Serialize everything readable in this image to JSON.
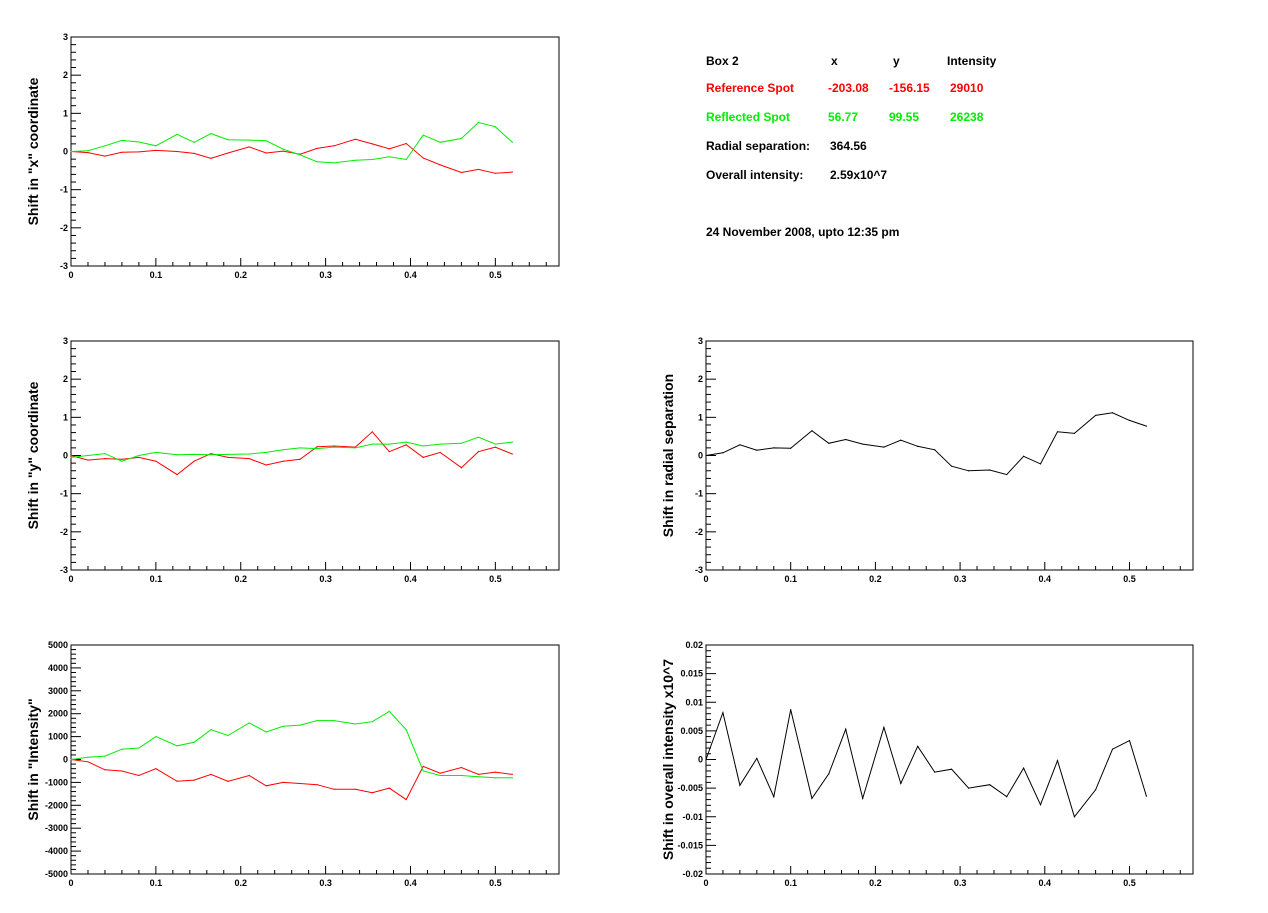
{
  "info": {
    "box_label": "Box 2",
    "col_x": "x",
    "col_y": "y",
    "col_intensity": "Intensity",
    "reference": {
      "label": "Reference Spot",
      "x": "-203.08",
      "y": "-156.15",
      "intensity": "29010"
    },
    "reflected": {
      "label": "Reflected Spot",
      "x": "56.77",
      "y": "99.55",
      "intensity": "26238"
    },
    "radial_label": "Radial separation:",
    "radial_value": "364.56",
    "overall_label": "Overall intensity:",
    "overall_value": "2.59x10^7",
    "date": "24 November 2008, upto 12:35 pm"
  },
  "colors": {
    "reference": "#ff0000",
    "reflected": "#00ee00",
    "single": "#000000"
  },
  "chart_data": [
    {
      "id": "x-shift",
      "type": "line",
      "ylabel": "Shift in \"x\" coordinate",
      "xlim": [
        0,
        0.575
      ],
      "ylim": [
        -3,
        3
      ],
      "xticks": [
        "0",
        "0.1",
        "0.2",
        "0.3",
        "0.4",
        "0.5"
      ],
      "yticks": [
        "-3",
        "-2",
        "-1",
        "0",
        "1",
        "2",
        "3"
      ],
      "x": [
        0,
        0.02,
        0.04,
        0.06,
        0.08,
        0.1,
        0.125,
        0.145,
        0.165,
        0.185,
        0.21,
        0.23,
        0.25,
        0.27,
        0.29,
        0.31,
        0.335,
        0.355,
        0.375,
        0.395,
        0.415,
        0.435,
        0.46,
        0.48,
        0.5,
        0.52
      ],
      "series": [
        {
          "name": "Reference Spot",
          "color": "reference",
          "values": [
            0,
            -0.03,
            -0.12,
            -0.02,
            -0.01,
            0.03,
            0,
            -0.05,
            -0.18,
            -0.04,
            0.12,
            -0.04,
            0.01,
            -0.07,
            0.08,
            0.15,
            0.32,
            0.2,
            0.07,
            0.21,
            -0.17,
            -0.35,
            -0.55,
            -0.47,
            -0.57,
            -0.54
          ]
        },
        {
          "name": "Reflected Spot",
          "color": "reflected",
          "values": [
            0,
            0.02,
            0.15,
            0.29,
            0.25,
            0.15,
            0.45,
            0.24,
            0.47,
            0.31,
            0.3,
            0.28,
            0.06,
            -0.09,
            -0.27,
            -0.3,
            -0.23,
            -0.21,
            -0.14,
            -0.21,
            0.43,
            0.24,
            0.34,
            0.76,
            0.65,
            0.24
          ]
        }
      ]
    },
    {
      "id": "y-shift",
      "type": "line",
      "ylabel": "Shift in \"y\" coordinate",
      "xlim": [
        0,
        0.575
      ],
      "ylim": [
        -3,
        3
      ],
      "xticks": [
        "0",
        "0.1",
        "0.2",
        "0.3",
        "0.4",
        "0.5"
      ],
      "yticks": [
        "-3",
        "-2",
        "-1",
        "0",
        "1",
        "2",
        "3"
      ],
      "x": [
        0,
        0.02,
        0.04,
        0.06,
        0.08,
        0.1,
        0.125,
        0.145,
        0.165,
        0.185,
        0.21,
        0.23,
        0.25,
        0.27,
        0.29,
        0.31,
        0.335,
        0.355,
        0.375,
        0.395,
        0.415,
        0.435,
        0.46,
        0.48,
        0.5,
        0.52
      ],
      "series": [
        {
          "name": "Reference Spot",
          "color": "reference",
          "values": [
            0,
            -0.12,
            -0.08,
            -0.1,
            -0.05,
            -0.15,
            -0.5,
            -0.15,
            0.05,
            -0.05,
            -0.08,
            -0.25,
            -0.15,
            -0.1,
            0.23,
            0.25,
            0.22,
            0.62,
            0.1,
            0.28,
            -0.05,
            0.08,
            -0.32,
            0.1,
            0.22,
            0.04
          ]
        },
        {
          "name": "Reflected Spot",
          "color": "reflected",
          "values": [
            -0.05,
            0,
            0.05,
            -0.15,
            0,
            0.08,
            0.02,
            0.03,
            0.02,
            0.03,
            0.04,
            0.08,
            0.15,
            0.2,
            0.18,
            0.22,
            0.2,
            0.3,
            0.3,
            0.35,
            0.25,
            0.3,
            0.32,
            0.48,
            0.3,
            0.35
          ]
        }
      ]
    },
    {
      "id": "intensity-shift",
      "type": "line",
      "ylabel": "Shift in \"Intensity\"",
      "xlim": [
        0,
        0.575
      ],
      "ylim": [
        -5000,
        5000
      ],
      "xticks": [
        "0",
        "0.1",
        "0.2",
        "0.3",
        "0.4",
        "0.5"
      ],
      "yticks": [
        "-5000",
        "-4000",
        "-3000",
        "-2000",
        "-1000",
        "0",
        "1000",
        "2000",
        "3000",
        "4000",
        "5000"
      ],
      "x": [
        0,
        0.02,
        0.04,
        0.06,
        0.08,
        0.1,
        0.125,
        0.145,
        0.165,
        0.185,
        0.21,
        0.23,
        0.25,
        0.27,
        0.29,
        0.31,
        0.335,
        0.355,
        0.375,
        0.395,
        0.415,
        0.435,
        0.46,
        0.48,
        0.5,
        0.52
      ],
      "series": [
        {
          "name": "Reference Spot",
          "color": "reference",
          "values": [
            0,
            -100,
            -450,
            -500,
            -700,
            -400,
            -950,
            -900,
            -650,
            -950,
            -700,
            -1150,
            -1000,
            -1050,
            -1100,
            -1300,
            -1300,
            -1450,
            -1250,
            -1750,
            -300,
            -600,
            -350,
            -650,
            -550,
            -650
          ]
        },
        {
          "name": "Reflected Spot",
          "color": "reflected",
          "values": [
            0,
            100,
            150,
            450,
            500,
            1000,
            600,
            750,
            1300,
            1050,
            1600,
            1200,
            1450,
            1500,
            1700,
            1700,
            1550,
            1650,
            2100,
            1300,
            -500,
            -700,
            -700,
            -750,
            -800,
            -800
          ]
        }
      ]
    },
    {
      "id": "radial-shift",
      "type": "line",
      "ylabel": "Shift in radial separation",
      "xlim": [
        0,
        0.575
      ],
      "ylim": [
        -3,
        3
      ],
      "xticks": [
        "0",
        "0.1",
        "0.2",
        "0.3",
        "0.4",
        "0.5"
      ],
      "yticks": [
        "-3",
        "-2",
        "-1",
        "0",
        "1",
        "2",
        "3"
      ],
      "x": [
        0,
        0.02,
        0.04,
        0.06,
        0.08,
        0.1,
        0.125,
        0.145,
        0.165,
        0.185,
        0.21,
        0.23,
        0.25,
        0.27,
        0.29,
        0.31,
        0.335,
        0.355,
        0.375,
        0.395,
        0.415,
        0.435,
        0.46,
        0.48,
        0.5,
        0.52
      ],
      "series": [
        {
          "color": "single",
          "values": [
            0,
            0.07,
            0.28,
            0.14,
            0.2,
            0.19,
            0.65,
            0.32,
            0.42,
            0.3,
            0.22,
            0.4,
            0.24,
            0.15,
            -0.28,
            -0.4,
            -0.38,
            -0.5,
            -0.02,
            -0.22,
            0.62,
            0.58,
            1.05,
            1.12,
            0.92,
            0.77
          ]
        }
      ]
    },
    {
      "id": "overall-intensity-shift",
      "type": "line",
      "ylabel": "Shift in overall intensity x10^7",
      "xlim": [
        0,
        0.575
      ],
      "ylim": [
        -0.02,
        0.02
      ],
      "xticks": [
        "0",
        "0.1",
        "0.2",
        "0.3",
        "0.4",
        "0.5"
      ],
      "yticks": [
        "-0.02",
        "-0.015",
        "-0.01",
        "-0.005",
        "0",
        "0.005",
        "0.01",
        "0.015",
        "0.02"
      ],
      "x": [
        0,
        0.02,
        0.04,
        0.06,
        0.08,
        0.1,
        0.125,
        0.145,
        0.165,
        0.185,
        0.21,
        0.23,
        0.25,
        0.27,
        0.29,
        0.31,
        0.335,
        0.355,
        0.375,
        0.395,
        0.415,
        0.435,
        0.46,
        0.48,
        0.5,
        0.52
      ],
      "series": [
        {
          "color": "single",
          "values": [
            0,
            0.0082,
            -0.0045,
            0.0002,
            -0.0065,
            0.0087,
            -0.0068,
            -0.0025,
            0.0053,
            -0.0068,
            0.0056,
            -0.0042,
            0.0023,
            -0.0022,
            -0.0017,
            -0.005,
            -0.0044,
            -0.0065,
            -0.0015,
            -0.0079,
            -0.0002,
            -0.01,
            -0.0053,
            0.0018,
            0.0033,
            -0.0064
          ]
        }
      ]
    }
  ]
}
